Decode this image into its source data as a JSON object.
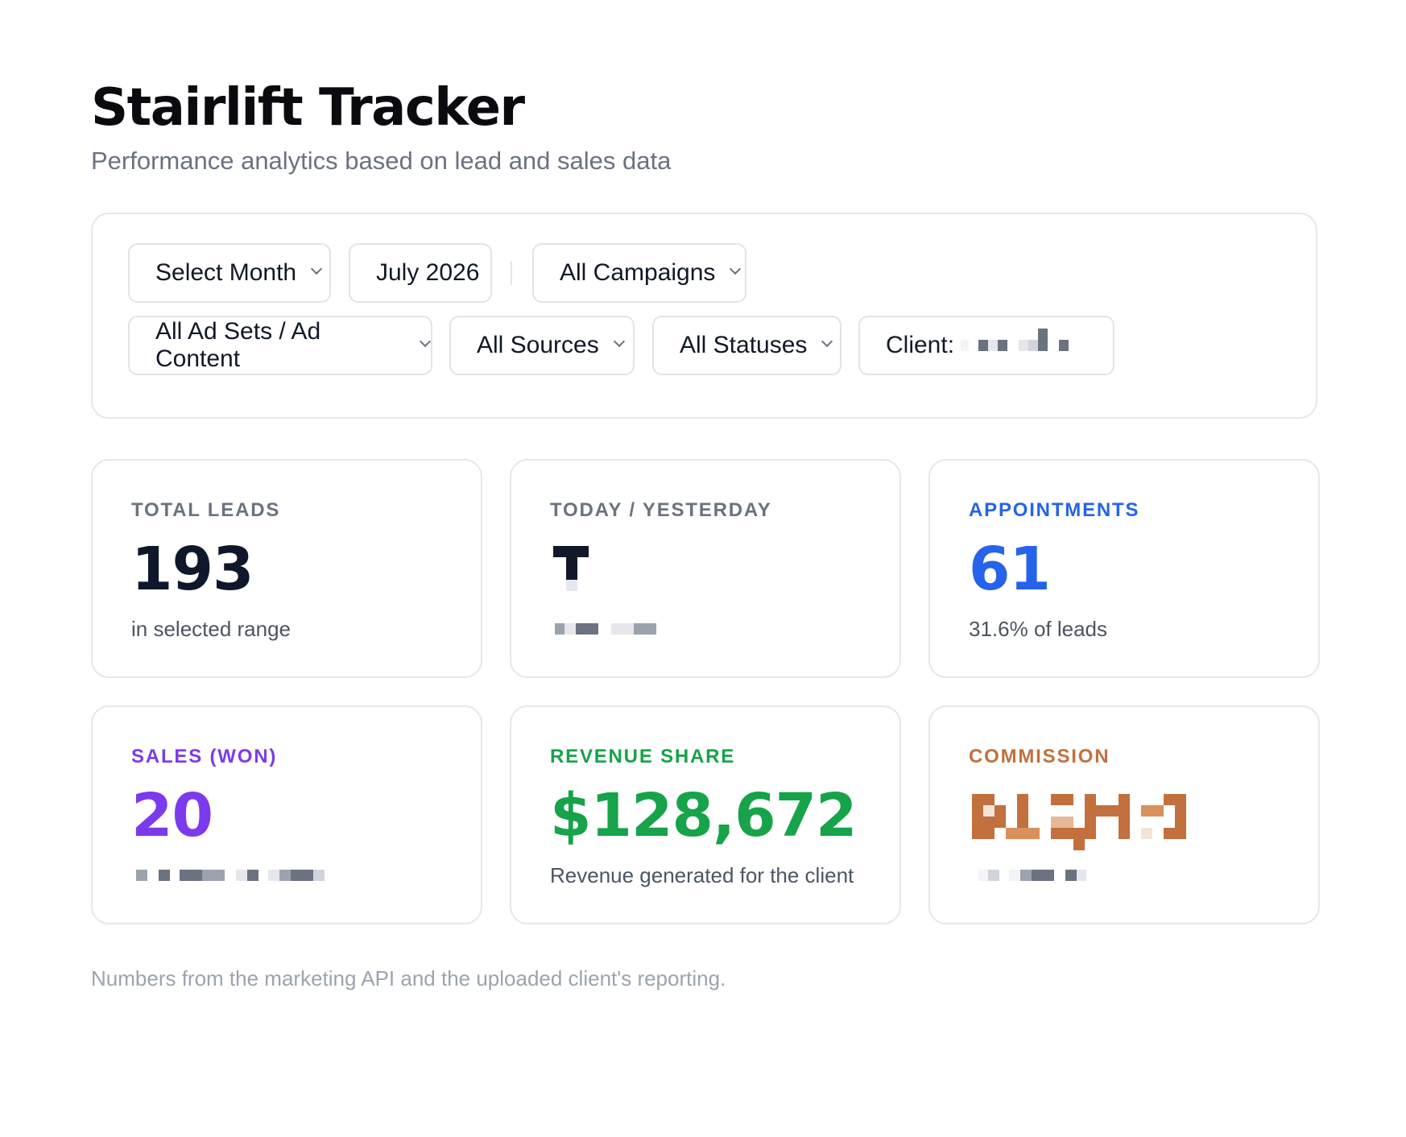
{
  "header": {
    "title": "Stairlift Tracker",
    "subtitle": "Performance analytics based on lead and sales data"
  },
  "filters": {
    "month_select": "Select Month",
    "month_value": "July 2026",
    "campaigns": "All Campaigns",
    "ad_sets": "All Ad Sets / Ad Content",
    "sources": "All Sources",
    "statuses": "All Statuses",
    "client_label": "Client:"
  },
  "cards": {
    "total_leads": {
      "label": "TOTAL LEADS",
      "value": "193",
      "sub": "in selected range",
      "color": "#0f172a"
    },
    "today_yesterday": {
      "label": "TODAY / YESTERDAY",
      "color": "#0f172a"
    },
    "appointments": {
      "label": "APPOINTMENTS",
      "value": "61",
      "sub": "31.6% of leads",
      "color": "#2563eb"
    },
    "sales": {
      "label": "SALES (WON)",
      "value": "20",
      "color": "#7c3aed"
    },
    "revenue_share": {
      "label": "REVENUE SHARE",
      "value": "$128,672",
      "sub": "Revenue generated for the client",
      "color": "#16a34a"
    },
    "commission": {
      "label": "COMMISSION",
      "color": "#c2703d"
    }
  },
  "footer": {
    "note": "Numbers from the marketing API and the uploaded client's reporting."
  }
}
